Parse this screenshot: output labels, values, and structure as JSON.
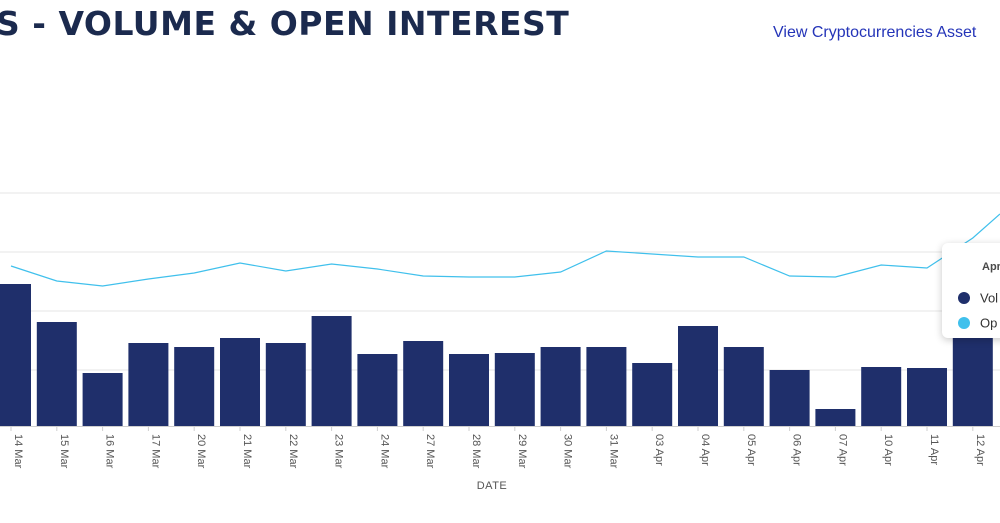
{
  "header": {
    "title": "S - VOLUME & OPEN INTEREST",
    "link_label": "View Cryptocurrencies Asset"
  },
  "colors": {
    "volume": "#1f2f6b",
    "open_interest": "#40c0ec",
    "grid": "#e6e6e6"
  },
  "tooltip": {
    "date": "Apr",
    "items": [
      {
        "label": "Vol",
        "color": "#1f2f6b"
      },
      {
        "label": "Op",
        "color": "#40c0ec"
      }
    ]
  },
  "chart_data": {
    "type": "bar",
    "xlabel": "DATE",
    "ylabel": "",
    "categories": [
      "14 Mar",
      "15 Mar",
      "16 Mar",
      "17 Mar",
      "20 Mar",
      "21 Mar",
      "22 Mar",
      "23 Mar",
      "24 Mar",
      "27 Mar",
      "28 Mar",
      "29 Mar",
      "30 Mar",
      "31 Mar",
      "03 Apr",
      "04 Apr",
      "05 Apr",
      "06 Apr",
      "07 Apr",
      "10 Apr",
      "11 Apr",
      "12 Apr"
    ],
    "grid": true,
    "legend": "tooltip",
    "series": [
      {
        "kind": "bar",
        "color": "#1f2f6b",
        "values": [
          142,
          104,
          53,
          83,
          79,
          88,
          83,
          110,
          72,
          85,
          72,
          73,
          79,
          79,
          63,
          100,
          79,
          56,
          17,
          59,
          58,
          95
        ]
      },
      {
        "kind": "line",
        "color": "#40c0ec",
        "values": [
          160,
          145,
          140,
          147,
          153,
          163,
          155,
          162,
          157,
          150,
          149,
          149,
          154,
          175,
          172,
          169,
          169,
          150,
          149,
          161,
          158,
          188
        ]
      }
    ]
  }
}
